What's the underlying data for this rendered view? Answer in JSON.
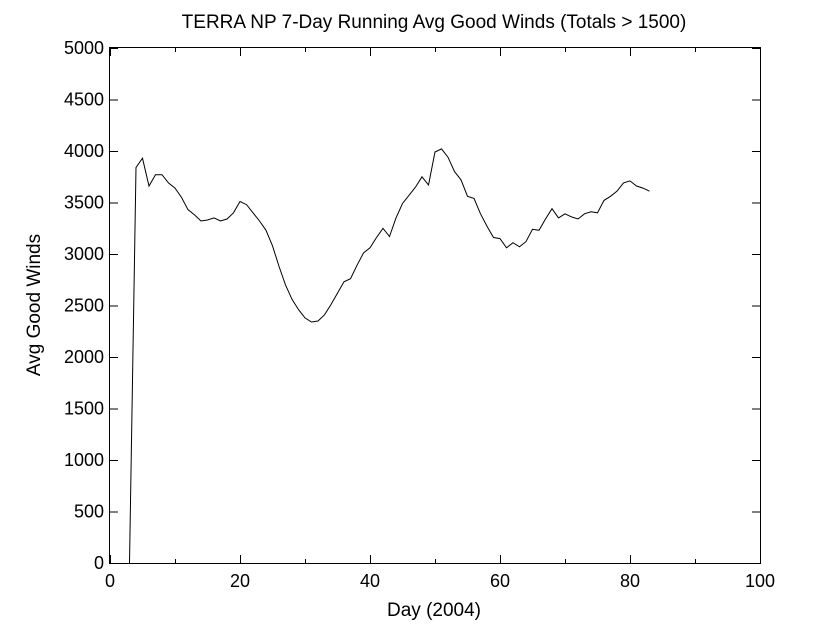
{
  "chart_data": {
    "type": "line",
    "title": "TERRA NP 7-Day Running Avg Good Winds (Totals > 1500)",
    "xlabel": "Day (2004)",
    "ylabel": "Avg Good Winds",
    "xlim": [
      0,
      100
    ],
    "ylim": [
      0,
      5000
    ],
    "xticks": [
      0,
      20,
      40,
      60,
      80,
      100
    ],
    "yticks": [
      0,
      500,
      1000,
      1500,
      2000,
      2500,
      3000,
      3500,
      4000,
      4500,
      5000
    ],
    "grid": false,
    "series": [
      {
        "color": "#000000",
        "x": [
          3,
          4,
          5,
          6,
          7,
          8,
          9,
          10,
          11,
          12,
          13,
          14,
          15,
          16,
          17,
          18,
          19,
          20,
          21,
          22,
          23,
          24,
          25,
          26,
          27,
          28,
          29,
          30,
          31,
          32,
          33,
          34,
          35,
          36,
          37,
          38,
          39,
          40,
          41,
          42,
          43,
          44,
          45,
          46,
          47,
          48,
          49,
          50,
          51,
          52,
          53,
          54,
          55,
          56,
          57,
          58,
          59,
          60,
          61,
          62,
          63,
          64,
          65,
          66,
          67,
          68,
          69,
          70,
          71,
          72,
          73,
          74,
          75,
          76,
          77,
          78,
          79,
          80,
          81,
          82,
          83
        ],
        "y": [
          0,
          3840,
          3930,
          3660,
          3770,
          3770,
          3690,
          3640,
          3550,
          3430,
          3380,
          3320,
          3330,
          3350,
          3320,
          3340,
          3400,
          3510,
          3480,
          3400,
          3320,
          3230,
          3080,
          2880,
          2700,
          2560,
          2460,
          2380,
          2340,
          2350,
          2410,
          2510,
          2620,
          2730,
          2760,
          2890,
          3010,
          3060,
          3160,
          3250,
          3170,
          3350,
          3490,
          3570,
          3650,
          3750,
          3670,
          3990,
          4020,
          3940,
          3800,
          3720,
          3560,
          3540,
          3390,
          3270,
          3160,
          3150,
          3060,
          3110,
          3070,
          3120,
          3240,
          3230,
          3340,
          3440,
          3350,
          3390,
          3360,
          3340,
          3390,
          3410,
          3400,
          3520,
          3560,
          3610,
          3690,
          3710,
          3660,
          3640,
          3610
        ]
      }
    ]
  }
}
